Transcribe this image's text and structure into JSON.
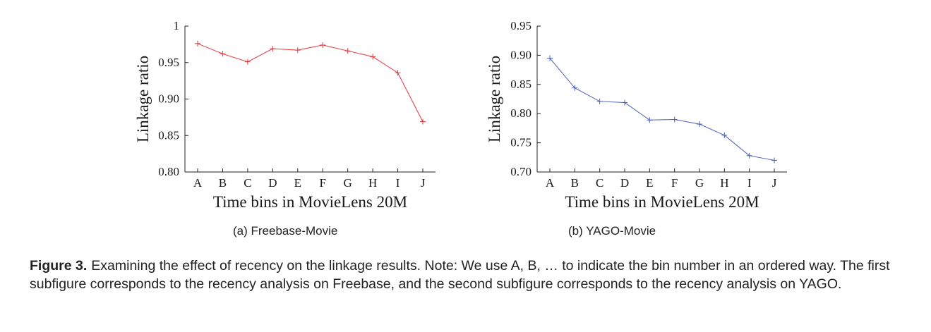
{
  "chart_data": [
    {
      "type": "line",
      "categories": [
        "A",
        "B",
        "C",
        "D",
        "E",
        "F",
        "G",
        "H",
        "I",
        "J"
      ],
      "series": [
        {
          "values": [
            0.976,
            0.962,
            0.951,
            0.969,
            0.967,
            0.974,
            0.966,
            0.958,
            0.936,
            0.869
          ],
          "color": "#e8353a"
        }
      ],
      "xlabel": "Time bins in MovieLens 20M",
      "ylabel": "Linkage ratio",
      "ylim": [
        0.8,
        1.0
      ],
      "yticks": [
        0.8,
        0.85,
        0.9,
        0.95,
        1
      ],
      "ytick_labels": [
        "0.80",
        "0.85",
        "0.90",
        "0.95",
        "1"
      ],
      "marker": "plus",
      "grid": false
    },
    {
      "type": "line",
      "categories": [
        "A",
        "B",
        "C",
        "D",
        "E",
        "F",
        "G",
        "H",
        "I",
        "J"
      ],
      "series": [
        {
          "values": [
            0.895,
            0.844,
            0.821,
            0.819,
            0.789,
            0.79,
            0.782,
            0.763,
            0.728,
            0.72
          ],
          "color": "#4a5fb8"
        }
      ],
      "xlabel": "Time bins in MovieLens 20M",
      "ylabel": "Linkage ratio",
      "ylim": [
        0.7,
        0.95
      ],
      "yticks": [
        0.7,
        0.75,
        0.8,
        0.85,
        0.9,
        0.95
      ],
      "ytick_labels": [
        "0.70",
        "0.75",
        "0.80",
        "0.85",
        "0.90",
        "0.95"
      ],
      "marker": "plus",
      "grid": false
    }
  ],
  "subcaptions": {
    "a": "(a)  Freebase-Movie",
    "b": "(b)  YAGO-Movie"
  },
  "caption": {
    "lead": "Figure 3.",
    "text": "Examining the effect of recency on the linkage results. Note: We use A, B, … to indicate the bin number in an ordered way. The first subfigure corresponds to the recency analysis on Freebase, and the second subfigure corresponds to the recency analysis on YAGO."
  }
}
